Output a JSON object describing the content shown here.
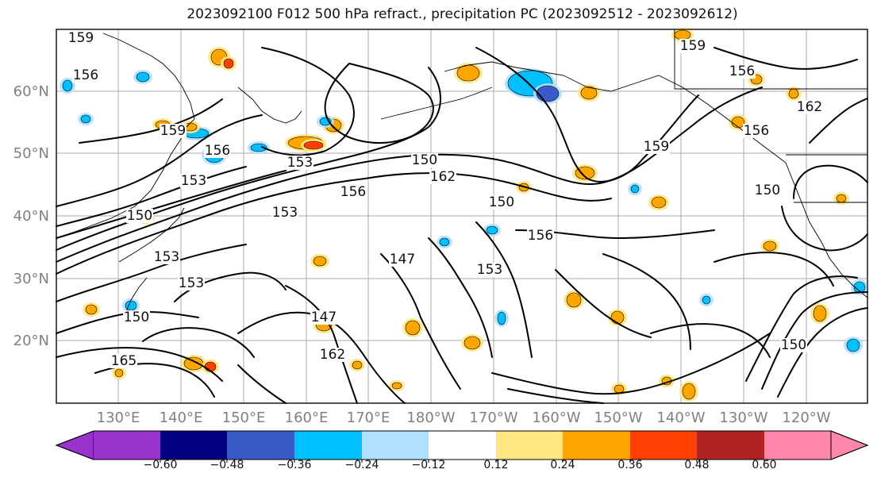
{
  "title": "2023092100 F012 500 hPa refract., precipitation PC (2023092512 - 2023092612)",
  "lat_labels": [
    "60°N",
    "50°N",
    "40°N",
    "30°N",
    "20°N"
  ],
  "lon_labels": [
    "130°E",
    "140°E",
    "150°E",
    "160°E",
    "170°E",
    "180°W",
    "170°W",
    "160°W",
    "150°W",
    "140°W",
    "130°W",
    "120°W"
  ],
  "colorbar": {
    "colors": [
      "#9933cc",
      "#000080",
      "#3a5bc7",
      "#00bfff",
      "#b0e0ff",
      "#ffffff",
      "#ffe680",
      "#ffa500",
      "#ff4000",
      "#b22222",
      "#ff88aa"
    ],
    "tick_labels": [
      "−0.60",
      "−0.48",
      "−0.36",
      "−0.24",
      "−0.12",
      "0.12",
      "0.24",
      "0.36",
      "0.48",
      "0.60"
    ]
  },
  "contour_labels": [
    "159",
    "156",
    "159",
    "156",
    "153",
    "153",
    "162",
    "150",
    "150",
    "156",
    "153",
    "147",
    "153",
    "147",
    "150",
    "156",
    "159",
    "150",
    "156",
    "153",
    "150",
    "159",
    "156",
    "162",
    "165",
    "162",
    "150",
    "153"
  ]
}
